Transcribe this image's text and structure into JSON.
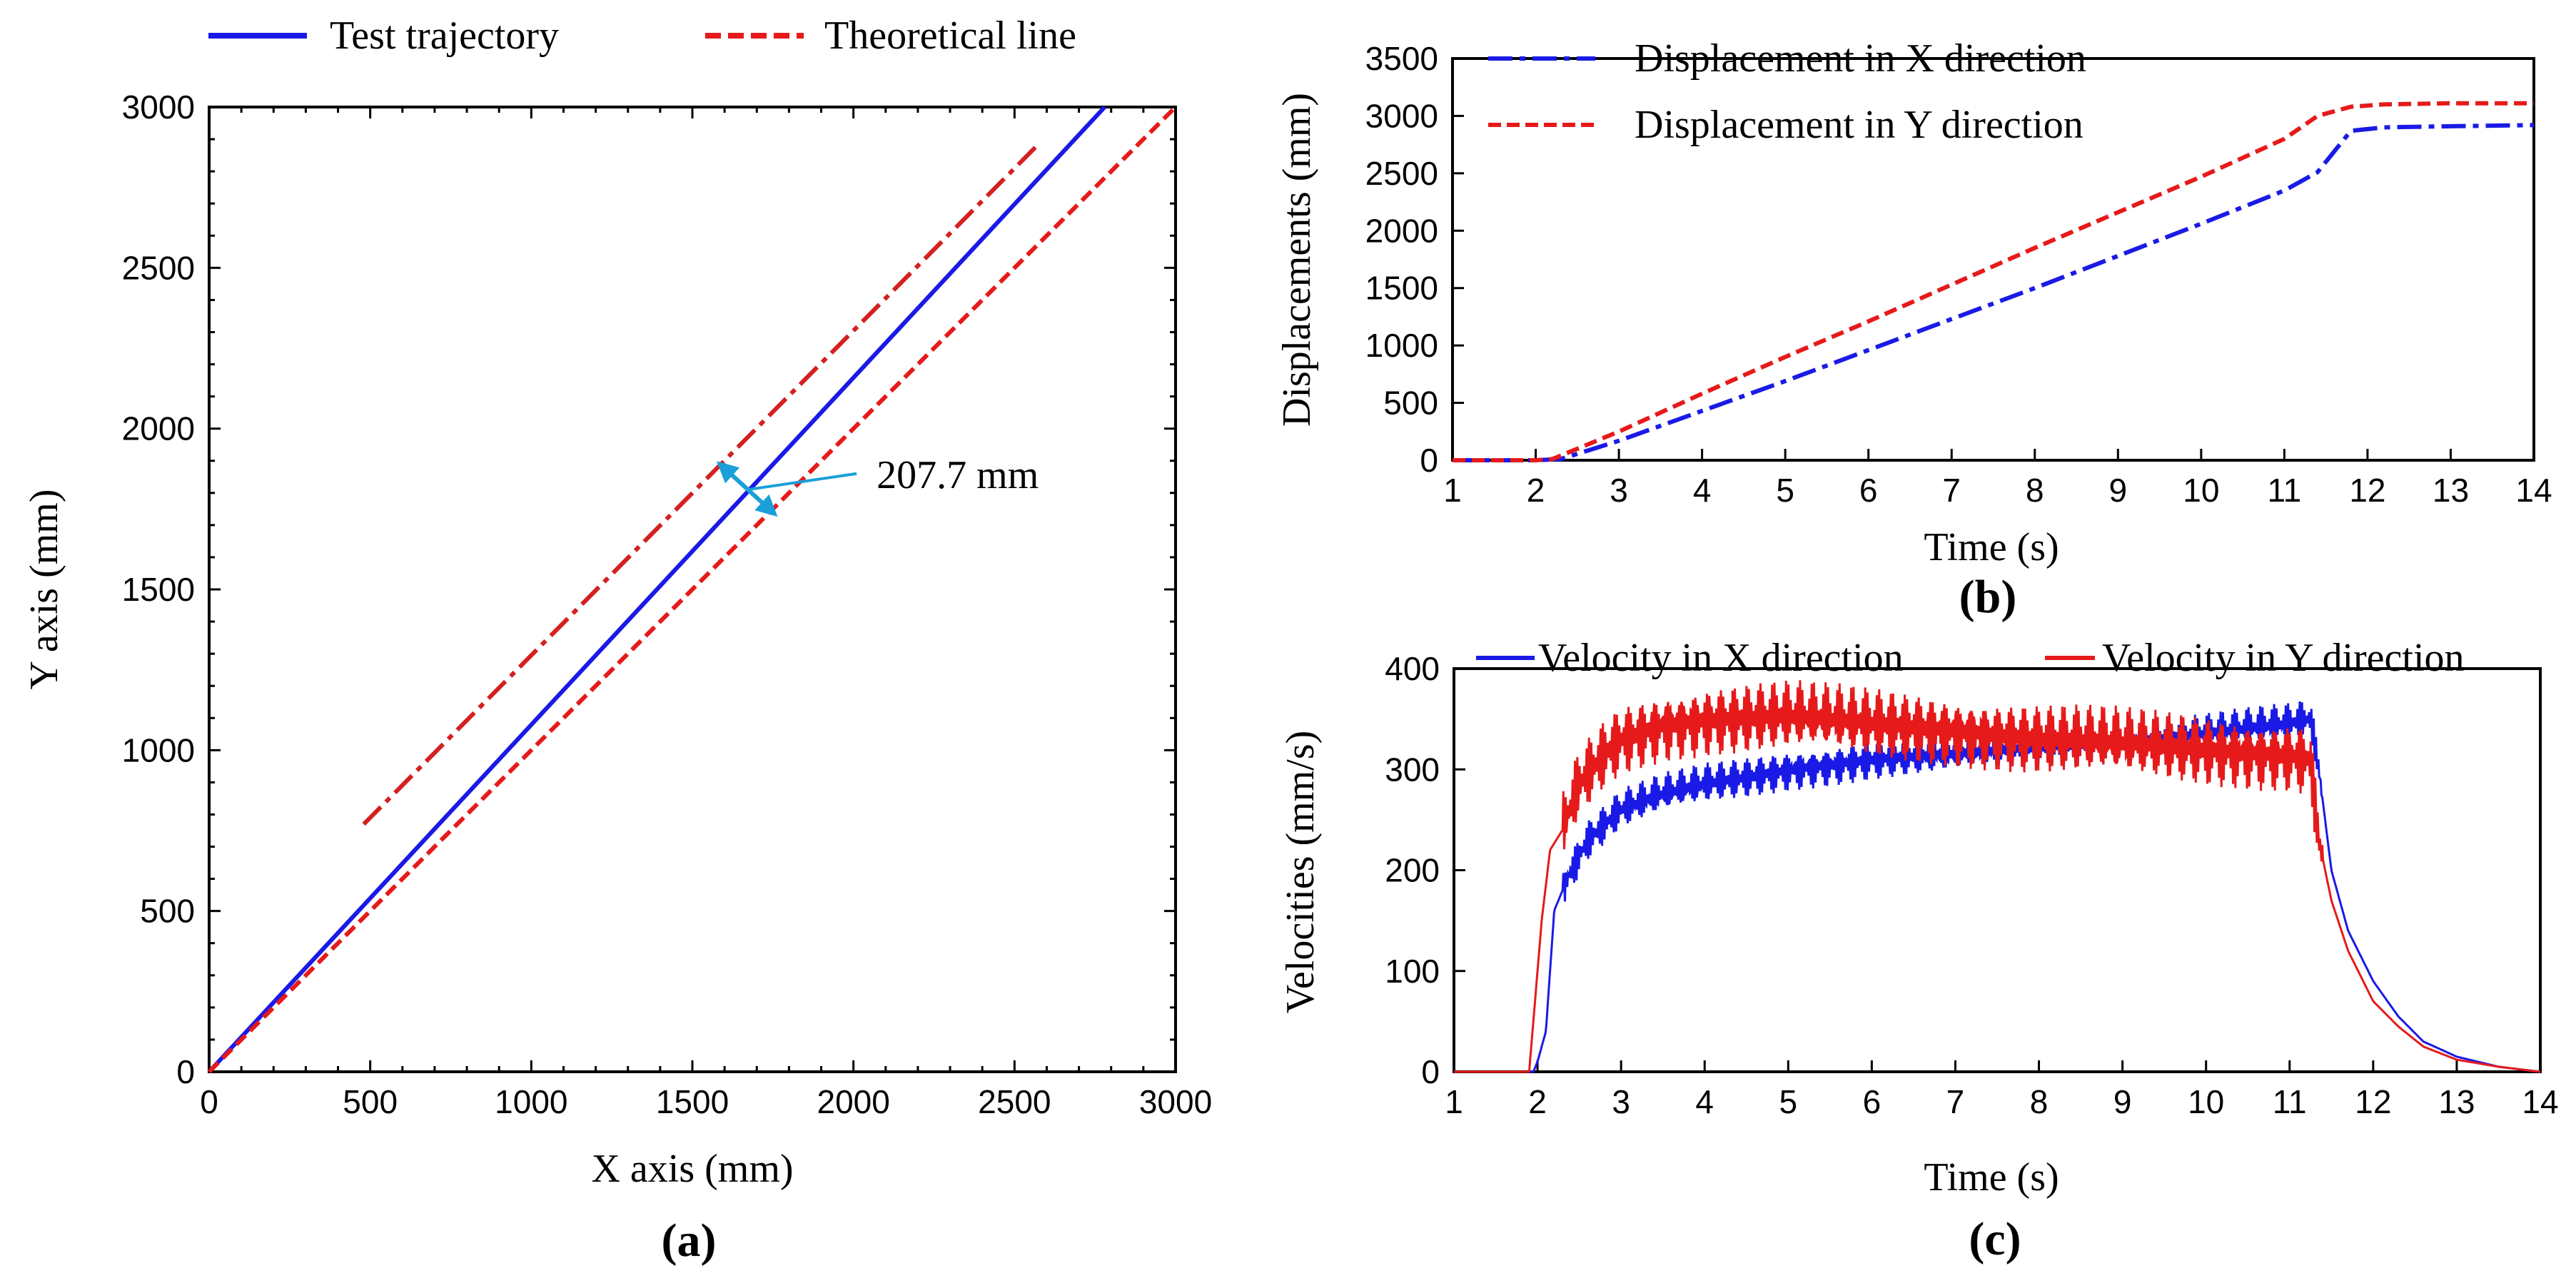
{
  "figure": {
    "panels": [
      {
        "label": "(a)"
      },
      {
        "label": "(b)"
      },
      {
        "label": "(c)"
      }
    ]
  },
  "chart_data": [
    {
      "type": "line",
      "panel": "(a)",
      "title": "",
      "xlabel": "X axis (mm)",
      "ylabel": "Y axis (mm)",
      "xlim": [
        0,
        3000
      ],
      "ylim": [
        0,
        3000
      ],
      "xticks": [
        0,
        500,
        1000,
        1500,
        2000,
        2500,
        3000
      ],
      "yticks": [
        0,
        500,
        1000,
        1500,
        2000,
        2500,
        3000
      ],
      "legend_position": "top",
      "series": [
        {
          "name": "Test trajectory",
          "color": "#1a1ae6",
          "style": "solid",
          "x": [
            0,
            2780
          ],
          "y": [
            0,
            3000
          ]
        },
        {
          "name": "Theoretical line",
          "color": "#e61a1a",
          "style": "dashed",
          "x": [
            0,
            3000
          ],
          "y": [
            0,
            3000
          ]
        },
        {
          "name": "",
          "color": "#d42020",
          "style": "dashdot",
          "x": [
            480,
            2580
          ],
          "y": [
            770,
            2890
          ]
        }
      ],
      "annotations": [
        {
          "text": "207.7 mm",
          "color": "#1aa0d8",
          "arrow_from": [
            1585,
            1890
          ],
          "arrow_to": [
            1755,
            1735
          ],
          "pointer_from": [
            2010,
            1860
          ],
          "pointer_to": [
            1670,
            1810
          ]
        }
      ]
    },
    {
      "type": "line",
      "panel": "(b)",
      "title": "",
      "xlabel": "Time (s)",
      "ylabel": "Displacements (mm)",
      "xlim": [
        1,
        14
      ],
      "ylim": [
        0,
        3500
      ],
      "xticks": [
        1,
        2,
        3,
        4,
        5,
        6,
        7,
        8,
        9,
        10,
        11,
        12,
        13,
        14
      ],
      "yticks": [
        0,
        500,
        1000,
        1500,
        2000,
        2500,
        3000,
        3500
      ],
      "legend_position": "top-left",
      "series": [
        {
          "name": "Displacement in X direction",
          "color": "#1a1ae6",
          "style": "dashdot",
          "x": [
            1,
            2,
            2.3,
            3,
            4,
            5,
            6,
            7,
            8,
            9,
            10,
            11,
            11.4,
            11.8,
            12.2,
            13,
            14
          ],
          "y": [
            0,
            0,
            10,
            170,
            430,
            690,
            960,
            1230,
            1500,
            1780,
            2060,
            2350,
            2510,
            2870,
            2900,
            2910,
            2920
          ]
        },
        {
          "name": "Displacement in Y direction",
          "color": "#e61a1a",
          "style": "dashed",
          "x": [
            1,
            2,
            2.2,
            3,
            4,
            5,
            6,
            7,
            8,
            9,
            10,
            11,
            11.4,
            11.8,
            12.2,
            13,
            14
          ],
          "y": [
            0,
            0,
            10,
            250,
            580,
            900,
            1210,
            1530,
            1850,
            2160,
            2470,
            2800,
            3000,
            3080,
            3100,
            3110,
            3110
          ]
        }
      ]
    },
    {
      "type": "line",
      "panel": "(c)",
      "title": "",
      "xlabel": "Time (s)",
      "ylabel": "Velocities (mm/s)",
      "xlim": [
        1,
        14
      ],
      "ylim": [
        0,
        400
      ],
      "xticks": [
        1,
        2,
        3,
        4,
        5,
        6,
        7,
        8,
        9,
        10,
        11,
        12,
        13,
        14
      ],
      "yticks": [
        0,
        100,
        200,
        300,
        400
      ],
      "legend_position": "top",
      "series": [
        {
          "name": "Velocity in X direction",
          "color": "#1a1ae6",
          "style": "solid",
          "x": [
            1,
            1.95,
            2.0,
            2.1,
            2.2,
            2.4,
            2.6,
            3.0,
            3.5,
            4.0,
            4.5,
            5.0,
            6.0,
            7.0,
            8.0,
            9.0,
            10.0,
            11.0,
            11.25,
            11.35,
            11.5,
            11.7,
            12.0,
            12.3,
            12.6,
            13.0,
            13.5,
            14.0
          ],
          "y": [
            0,
            0,
            10,
            40,
            160,
            200,
            230,
            260,
            275,
            285,
            292,
            300,
            310,
            315,
            322,
            328,
            335,
            345,
            350,
            300,
            200,
            140,
            90,
            55,
            30,
            15,
            5,
            0
          ],
          "oscillation_amplitude": 22
        },
        {
          "name": "Velocity in Y direction",
          "color": "#e61a1a",
          "style": "solid",
          "x": [
            1,
            1.9,
            1.95,
            2.05,
            2.15,
            2.3,
            2.5,
            2.8,
            3.0,
            3.5,
            4.0,
            5.0,
            6.0,
            7.0,
            8.0,
            9.0,
            10.0,
            11.0,
            11.25,
            11.35,
            11.5,
            11.7,
            12.0,
            12.3,
            12.6,
            13.0,
            13.5,
            14.0
          ],
          "y": [
            0,
            0,
            50,
            150,
            220,
            240,
            285,
            315,
            330,
            345,
            350,
            352,
            345,
            340,
            330,
            325,
            320,
            315,
            310,
            230,
            170,
            120,
            70,
            45,
            25,
            12,
            5,
            0
          ],
          "oscillation_amplitude": 38
        }
      ]
    }
  ]
}
